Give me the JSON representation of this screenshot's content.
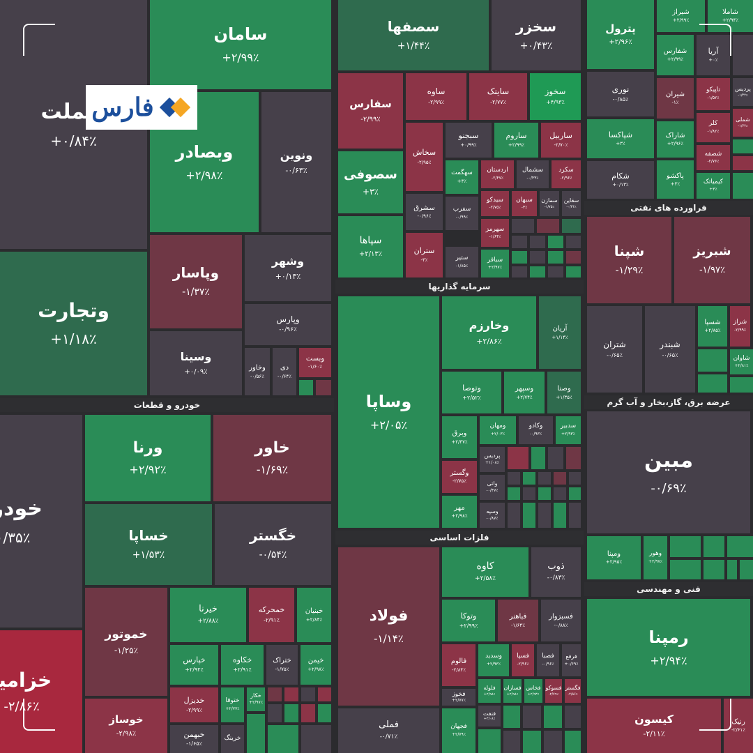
{
  "brand": {
    "name": "فارس"
  },
  "colors": {
    "up_strong": "#1f9a55",
    "up": "#2a8c57",
    "up_muted": "#2f6b4e",
    "neutral": "#46404a",
    "down_muted": "#6f3745",
    "down": "#8c3447",
    "down_strong": "#a8283e",
    "background": "#2b2b2e"
  },
  "sectors": [
    {
      "label": "خودرو و قطعات"
    },
    {
      "label": "سرمایه گذاریها"
    },
    {
      "label": "فلزات اساسی"
    },
    {
      "label": "فراورده های نفتی"
    },
    {
      "label": "عرضه برق، گاز،بخار و آب گرم"
    },
    {
      "label": "فنی و مهندسی"
    }
  ],
  "tiles": [
    {
      "name": "وبملت",
      "change": "+۰/۸۴٪"
    },
    {
      "name": "سامان",
      "change": "+۲/۹۹٪"
    },
    {
      "name": "وبصادر",
      "change": "+۲/۹۸٪"
    },
    {
      "name": "ونوین",
      "change": "-۰/۶۳٪"
    },
    {
      "name": "وتجارت",
      "change": "+۱/۱۸٪"
    },
    {
      "name": "وپاسار",
      "change": "-۱/۳۷٪"
    },
    {
      "name": "وشهر",
      "change": "+۰/۱۳٪"
    },
    {
      "name": "وپارس",
      "change": "-۰/۹۶٪"
    },
    {
      "name": "وسینا",
      "change": "+۰/۰۹٪"
    },
    {
      "name": "وخاور",
      "change": "-۰/۵۶٪"
    },
    {
      "name": "دی",
      "change": "-۰/۶۴٪"
    },
    {
      "name": "وبست",
      "change": "-۱/۶۰٪"
    },
    {
      "name": "خودرو",
      "change": "-۰/۳۵٪"
    },
    {
      "name": "خزامیا",
      "change": "-۲/۸۶٪"
    },
    {
      "name": "ورنا",
      "change": "+۲/۹۲٪"
    },
    {
      "name": "خاور",
      "change": "-۱/۶۹٪"
    },
    {
      "name": "خساپا",
      "change": "+۱/۵۳٪"
    },
    {
      "name": "خگستر",
      "change": "-۰/۵۴٪"
    },
    {
      "name": "خموتور",
      "change": "-۱/۲۵٪"
    },
    {
      "name": "خوساز",
      "change": "-۲/۹۸٪"
    },
    {
      "name": "خیرنا",
      "change": "+۲/۸۸٪"
    },
    {
      "name": "خمحرکه",
      "change": "-۲/۹۱٪"
    },
    {
      "name": "خبنیان",
      "change": "+۲/۸۴٪"
    },
    {
      "name": "خپارس",
      "change": "+۲/۹۲٪"
    },
    {
      "name": "خکاوه",
      "change": "+۲/۹۱٪"
    },
    {
      "name": "ختراک",
      "change": "-۱/۷۵٪"
    },
    {
      "name": "خیمن",
      "change": "+۲/۹۸٪"
    },
    {
      "name": "خدیزل",
      "change": "-۲/۹۹٪"
    },
    {
      "name": "ختوقا",
      "change": "+۲/۷۷٪"
    },
    {
      "name": "خکار",
      "change": "+۲/۹۷٪"
    },
    {
      "name": "خبهمن",
      "change": "-۱/۶۵٪"
    },
    {
      "name": "خرینگ",
      "change": ""
    },
    {
      "name": "سصفها",
      "change": "+۱/۴۴٪"
    },
    {
      "name": "سخزر",
      "change": "+۰/۴۳٪"
    },
    {
      "name": "سفارس",
      "change": "-۲/۹۹٪"
    },
    {
      "name": "ساوه",
      "change": "-۲/۹۹٪"
    },
    {
      "name": "ساینک",
      "change": "-۲/۷۷٪"
    },
    {
      "name": "سخوز",
      "change": "+۴/۹۳٪"
    },
    {
      "name": "سخاش",
      "change": "-۲/۹۵٪"
    },
    {
      "name": "سبجنو",
      "change": "+۰/۹۹٪"
    },
    {
      "name": "ساروم",
      "change": "+۲/۹۹٪"
    },
    {
      "name": "ساربیل",
      "change": "-۲/۷۰٪"
    },
    {
      "name": "سصوفی",
      "change": "+۳٪"
    },
    {
      "name": "سهگمت",
      "change": "+۳٪"
    },
    {
      "name": "اردستان",
      "change": "-۲/۴۷٪"
    },
    {
      "name": "سشمال",
      "change": "-۰/۴۴٪"
    },
    {
      "name": "سکرد",
      "change": "-۲/۹۶٪"
    },
    {
      "name": "سشرق",
      "change": "-۰/۹۶٪"
    },
    {
      "name": "سیدکو",
      "change": "-۲/۷۵٪"
    },
    {
      "name": "سبهان",
      "change": "-۳٪"
    },
    {
      "name": "سمازن",
      "change": "-۱/۷۵٪"
    },
    {
      "name": "سقاین",
      "change": "-۰/۴۴٪"
    },
    {
      "name": "سپاها",
      "change": "+۲/۱۳٪"
    },
    {
      "name": "سفرب",
      "change": "-۰/۹۹٪"
    },
    {
      "name": "سهرمز",
      "change": "-۱/۶۴٪"
    },
    {
      "name": "ستران",
      "change": "-۳٪"
    },
    {
      "name": "ستیر",
      "change": "-۱/۸۵٪"
    },
    {
      "name": "سباقر",
      "change": "+۲/۹۷٪"
    },
    {
      "name": "وساپا",
      "change": "+۲/۰۵٪"
    },
    {
      "name": "وخارزم",
      "change": "+۲/۸۶٪"
    },
    {
      "name": "آریان",
      "change": "+۱/۱۴٪"
    },
    {
      "name": "وتوصا",
      "change": "+۲/۵۲٪"
    },
    {
      "name": "وسپهر",
      "change": "+۲/۷۴٪"
    },
    {
      "name": "وصنا",
      "change": "+۱/۳۵٪"
    },
    {
      "name": "وبرق",
      "change": "+۲/۳۷٪"
    },
    {
      "name": "ومهان",
      "change": "+۲/۰۳٪"
    },
    {
      "name": "وکادو",
      "change": "-۰/۹۳٪"
    },
    {
      "name": "سدبیر",
      "change": "+۲/۹۳٪"
    },
    {
      "name": "پردیس",
      "change": "+۱/۰۸٪"
    },
    {
      "name": "وگستر",
      "change": "-۲/۷۵٪"
    },
    {
      "name": "واتی",
      "change": "-۰/۴۷٪"
    },
    {
      "name": "مهر",
      "change": "+۲/۹۸٪"
    },
    {
      "name": "وسپه",
      "change": "-۰/۸۷٪"
    },
    {
      "name": "فولاد",
      "change": "-۱/۱۴٪"
    },
    {
      "name": "کاوه",
      "change": "+۲/۵۸٪"
    },
    {
      "name": "ذوب",
      "change": "-۰/۸۳٪"
    },
    {
      "name": "وتوکا",
      "change": "+۲/۹۹٪"
    },
    {
      "name": "فباهنر",
      "change": "-۱/۶۴٪"
    },
    {
      "name": "فسبزوار",
      "change": "-۰/۸۸٪"
    },
    {
      "name": "فالوم",
      "change": "-۲/۸۴٪"
    },
    {
      "name": "وسدید",
      "change": "+۲/۹۳٪"
    },
    {
      "name": "فسپا",
      "change": "-۲/۹۶٪"
    },
    {
      "name": "فصبا",
      "change": "-۰/۹۶٪"
    },
    {
      "name": "فرفع",
      "change": "+۰/۶۹٪"
    },
    {
      "name": "فلوله",
      "change": "+۲/۹۸٪"
    },
    {
      "name": "فسازان",
      "change": "+۲/۹۸٪"
    },
    {
      "name": "فخاس",
      "change": "+۲/۹۳٪"
    },
    {
      "name": "فسوکو",
      "change": "-۲/۷۹٪"
    },
    {
      "name": "فگستر",
      "change": "-۲/۸۶٪"
    },
    {
      "name": "فخوز",
      "change": "+۲/۷۷٪"
    },
    {
      "name": "فنفت",
      "change": "+۲/۰۸٪"
    },
    {
      "name": "فملی",
      "change": "-۰/۷۱٪"
    },
    {
      "name": "فجهان",
      "change": "+۲/۷۹٪"
    },
    {
      "name": "پترول",
      "change": "+۲/۹۶٪"
    },
    {
      "name": "شیراز",
      "change": "+۲/۹۹٪"
    },
    {
      "name": "شاملا",
      "change": "+۲/۹۴٪"
    },
    {
      "name": "شفارس",
      "change": "+۲/۹۹٪"
    },
    {
      "name": "آریا",
      "change": "+۰٪"
    },
    {
      "name": "نوری",
      "change": "-۰/۸۵٪"
    },
    {
      "name": "شیران",
      "change": "-۱٪"
    },
    {
      "name": "تاپیکو",
      "change": "-۱/۵۲٪"
    },
    {
      "name": "پردیس",
      "change": "-۱/۴۴٪"
    },
    {
      "name": "شپاکسا",
      "change": "+۳٪"
    },
    {
      "name": "شاراک",
      "change": "+۲/۹۶٪"
    },
    {
      "name": "کلر",
      "change": "-۱/۸۲٪"
    },
    {
      "name": "شملی",
      "change": "-۱/۶۴٪"
    },
    {
      "name": "شکام",
      "change": "+۰/۱۳٪"
    },
    {
      "name": "پاکشو",
      "change": "+۳٪"
    },
    {
      "name": "شصفه",
      "change": "-۲/۷۶٪"
    },
    {
      "name": "کیمیاتک",
      "change": "+۳٪"
    },
    {
      "name": "شپنا",
      "change": "-۱/۲۹٪"
    },
    {
      "name": "شبریز",
      "change": "-۱/۹۷٪"
    },
    {
      "name": "شتران",
      "change": "-۰/۶۵٪"
    },
    {
      "name": "شبندر",
      "change": "-۰/۶۵٪"
    },
    {
      "name": "شسپا",
      "change": "+۲/۸۵٪"
    },
    {
      "name": "شراز",
      "change": "-۲/۹۹٪"
    },
    {
      "name": "شاوان",
      "change": "+۲/۸۱٪"
    },
    {
      "name": "مبین",
      "change": "-۰/۶۹٪"
    },
    {
      "name": "ومپنا",
      "change": "+۲/۹۵٪"
    },
    {
      "name": "وهور",
      "change": "+۲/۹۷٪"
    },
    {
      "name": "رمپنا",
      "change": "+۲/۹۴٪"
    },
    {
      "name": "کیسون",
      "change": "-۲/۱۱٪"
    },
    {
      "name": "رنیک",
      "change": "-۲/۶۱٪"
    },
    {
      "name": "شتران",
      "change": "-۰/۶۵٪"
    }
  ]
}
